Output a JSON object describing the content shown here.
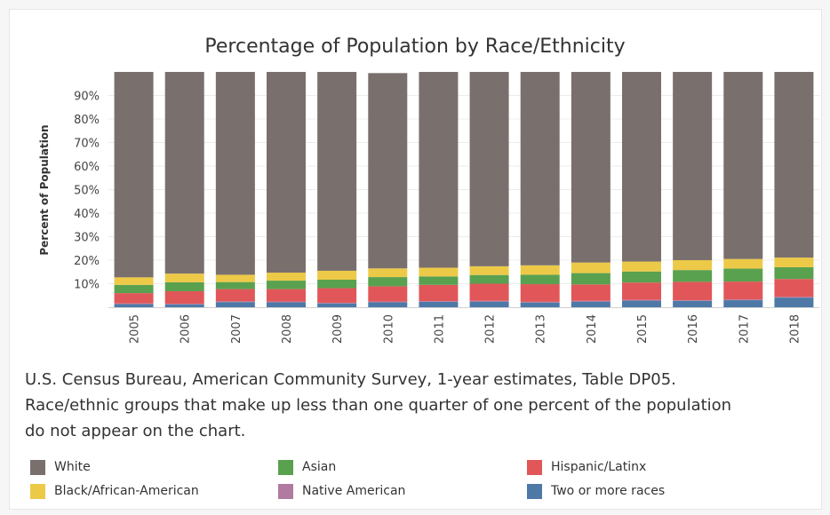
{
  "chart_data": {
    "type": "bar",
    "stacked": true,
    "title": "Percentage of Population by Race/Ethnicity",
    "xlabel": "",
    "ylabel": "Percent of Population",
    "ylim": [
      0,
      100
    ],
    "yticks": [
      "10%",
      "20%",
      "30%",
      "40%",
      "50%",
      "60%",
      "70%",
      "80%",
      "90%"
    ],
    "grid": true,
    "legend_position": "bottom",
    "categories": [
      "2005",
      "2006",
      "2007",
      "2008",
      "2009",
      "2010",
      "2011",
      "2012",
      "2013",
      "2014",
      "2015",
      "2016",
      "2017",
      "2018"
    ],
    "series": [
      {
        "name": "Two or more races",
        "color": "#4e79a7",
        "values": [
          1.3,
          1.2,
          2.2,
          2.1,
          1.6,
          2.1,
          2.3,
          2.4,
          2.0,
          2.4,
          2.8,
          2.7,
          3.0,
          4.1
        ]
      },
      {
        "name": "Native American",
        "color": "#b07aa1",
        "values": [
          0.3,
          0.3,
          0.3,
          0.3,
          0.3,
          0.3,
          0.3,
          0.3,
          0.3,
          0.3,
          0.3,
          0.3,
          0.3,
          0.3
        ]
      },
      {
        "name": "Hispanic/Latinx",
        "color": "#e15759",
        "values": [
          4.4,
          5.3,
          5.2,
          5.3,
          6.2,
          6.5,
          6.9,
          7.3,
          7.5,
          7.0,
          7.4,
          7.8,
          7.6,
          7.6
        ]
      },
      {
        "name": "Asian",
        "color": "#59a14f",
        "values": [
          3.5,
          3.8,
          3.0,
          3.6,
          3.6,
          3.9,
          3.6,
          3.7,
          4.0,
          4.8,
          4.7,
          5.0,
          5.5,
          5.0
        ]
      },
      {
        "name": "Black/African-American",
        "color": "#edc948",
        "values": [
          3.2,
          3.7,
          3.1,
          3.4,
          3.8,
          3.7,
          3.7,
          3.7,
          4.0,
          4.5,
          4.2,
          4.2,
          4.1,
          4.1
        ]
      },
      {
        "name": "White",
        "color": "#79706e",
        "values": [
          87.3,
          85.7,
          86.2,
          85.3,
          84.5,
          83.0,
          83.2,
          82.6,
          82.2,
          81.0,
          80.6,
          80.0,
          79.5,
          78.9
        ]
      }
    ]
  },
  "source": {
    "line1": "U.S. Census Bureau, American Community Survey, 1-year estimates, Table DP05.",
    "line2": "Race/ethnic groups that make up less than one quarter of one percent of the population",
    "line3": "do not appear on the chart."
  },
  "legend": {
    "items": [
      {
        "label": "White",
        "color": "#79706e"
      },
      {
        "label": "Asian",
        "color": "#59a14f"
      },
      {
        "label": "Hispanic/Latinx",
        "color": "#e15759"
      },
      {
        "label": "Black/African-American",
        "color": "#edc948"
      },
      {
        "label": "Native American",
        "color": "#b07aa1"
      },
      {
        "label": "Two or more races",
        "color": "#4e79a7"
      }
    ]
  }
}
